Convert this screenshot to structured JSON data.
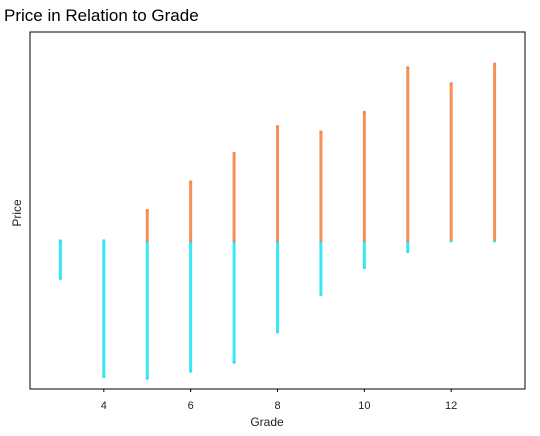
{
  "chart_data": {
    "type": "scatter",
    "title": "Price in Relation to Grade",
    "xlabel": "Grade",
    "ylabel": "Price",
    "xlim": [
      2.3,
      13.7
    ],
    "ylim": [
      0,
      1
    ],
    "x_ticks": [
      4,
      6,
      8,
      10,
      12
    ],
    "y_ticks": [],
    "y_tick_labels_shown": false,
    "grid": false,
    "legend": "none",
    "threshold": 0.415,
    "colors": {
      "below_threshold": "#22e5f7",
      "above_threshold": "#f5844a"
    },
    "series": [
      {
        "x": 3,
        "low": 0.31,
        "high": 0.415
      },
      {
        "x": 4,
        "low": 0.035,
        "high": 0.415
      },
      {
        "x": 5,
        "low": 0.03,
        "high": 0.5
      },
      {
        "x": 6,
        "low": 0.05,
        "high": 0.58
      },
      {
        "x": 7,
        "low": 0.075,
        "high": 0.66
      },
      {
        "x": 8,
        "low": 0.16,
        "high": 0.735
      },
      {
        "x": 9,
        "low": 0.265,
        "high": 0.72
      },
      {
        "x": 10,
        "low": 0.34,
        "high": 0.775
      },
      {
        "x": 11,
        "low": 0.385,
        "high": 0.9
      },
      {
        "x": 12,
        "low": 0.415,
        "high": 0.855
      },
      {
        "x": 13,
        "low": 0.415,
        "high": 0.91
      }
    ]
  }
}
